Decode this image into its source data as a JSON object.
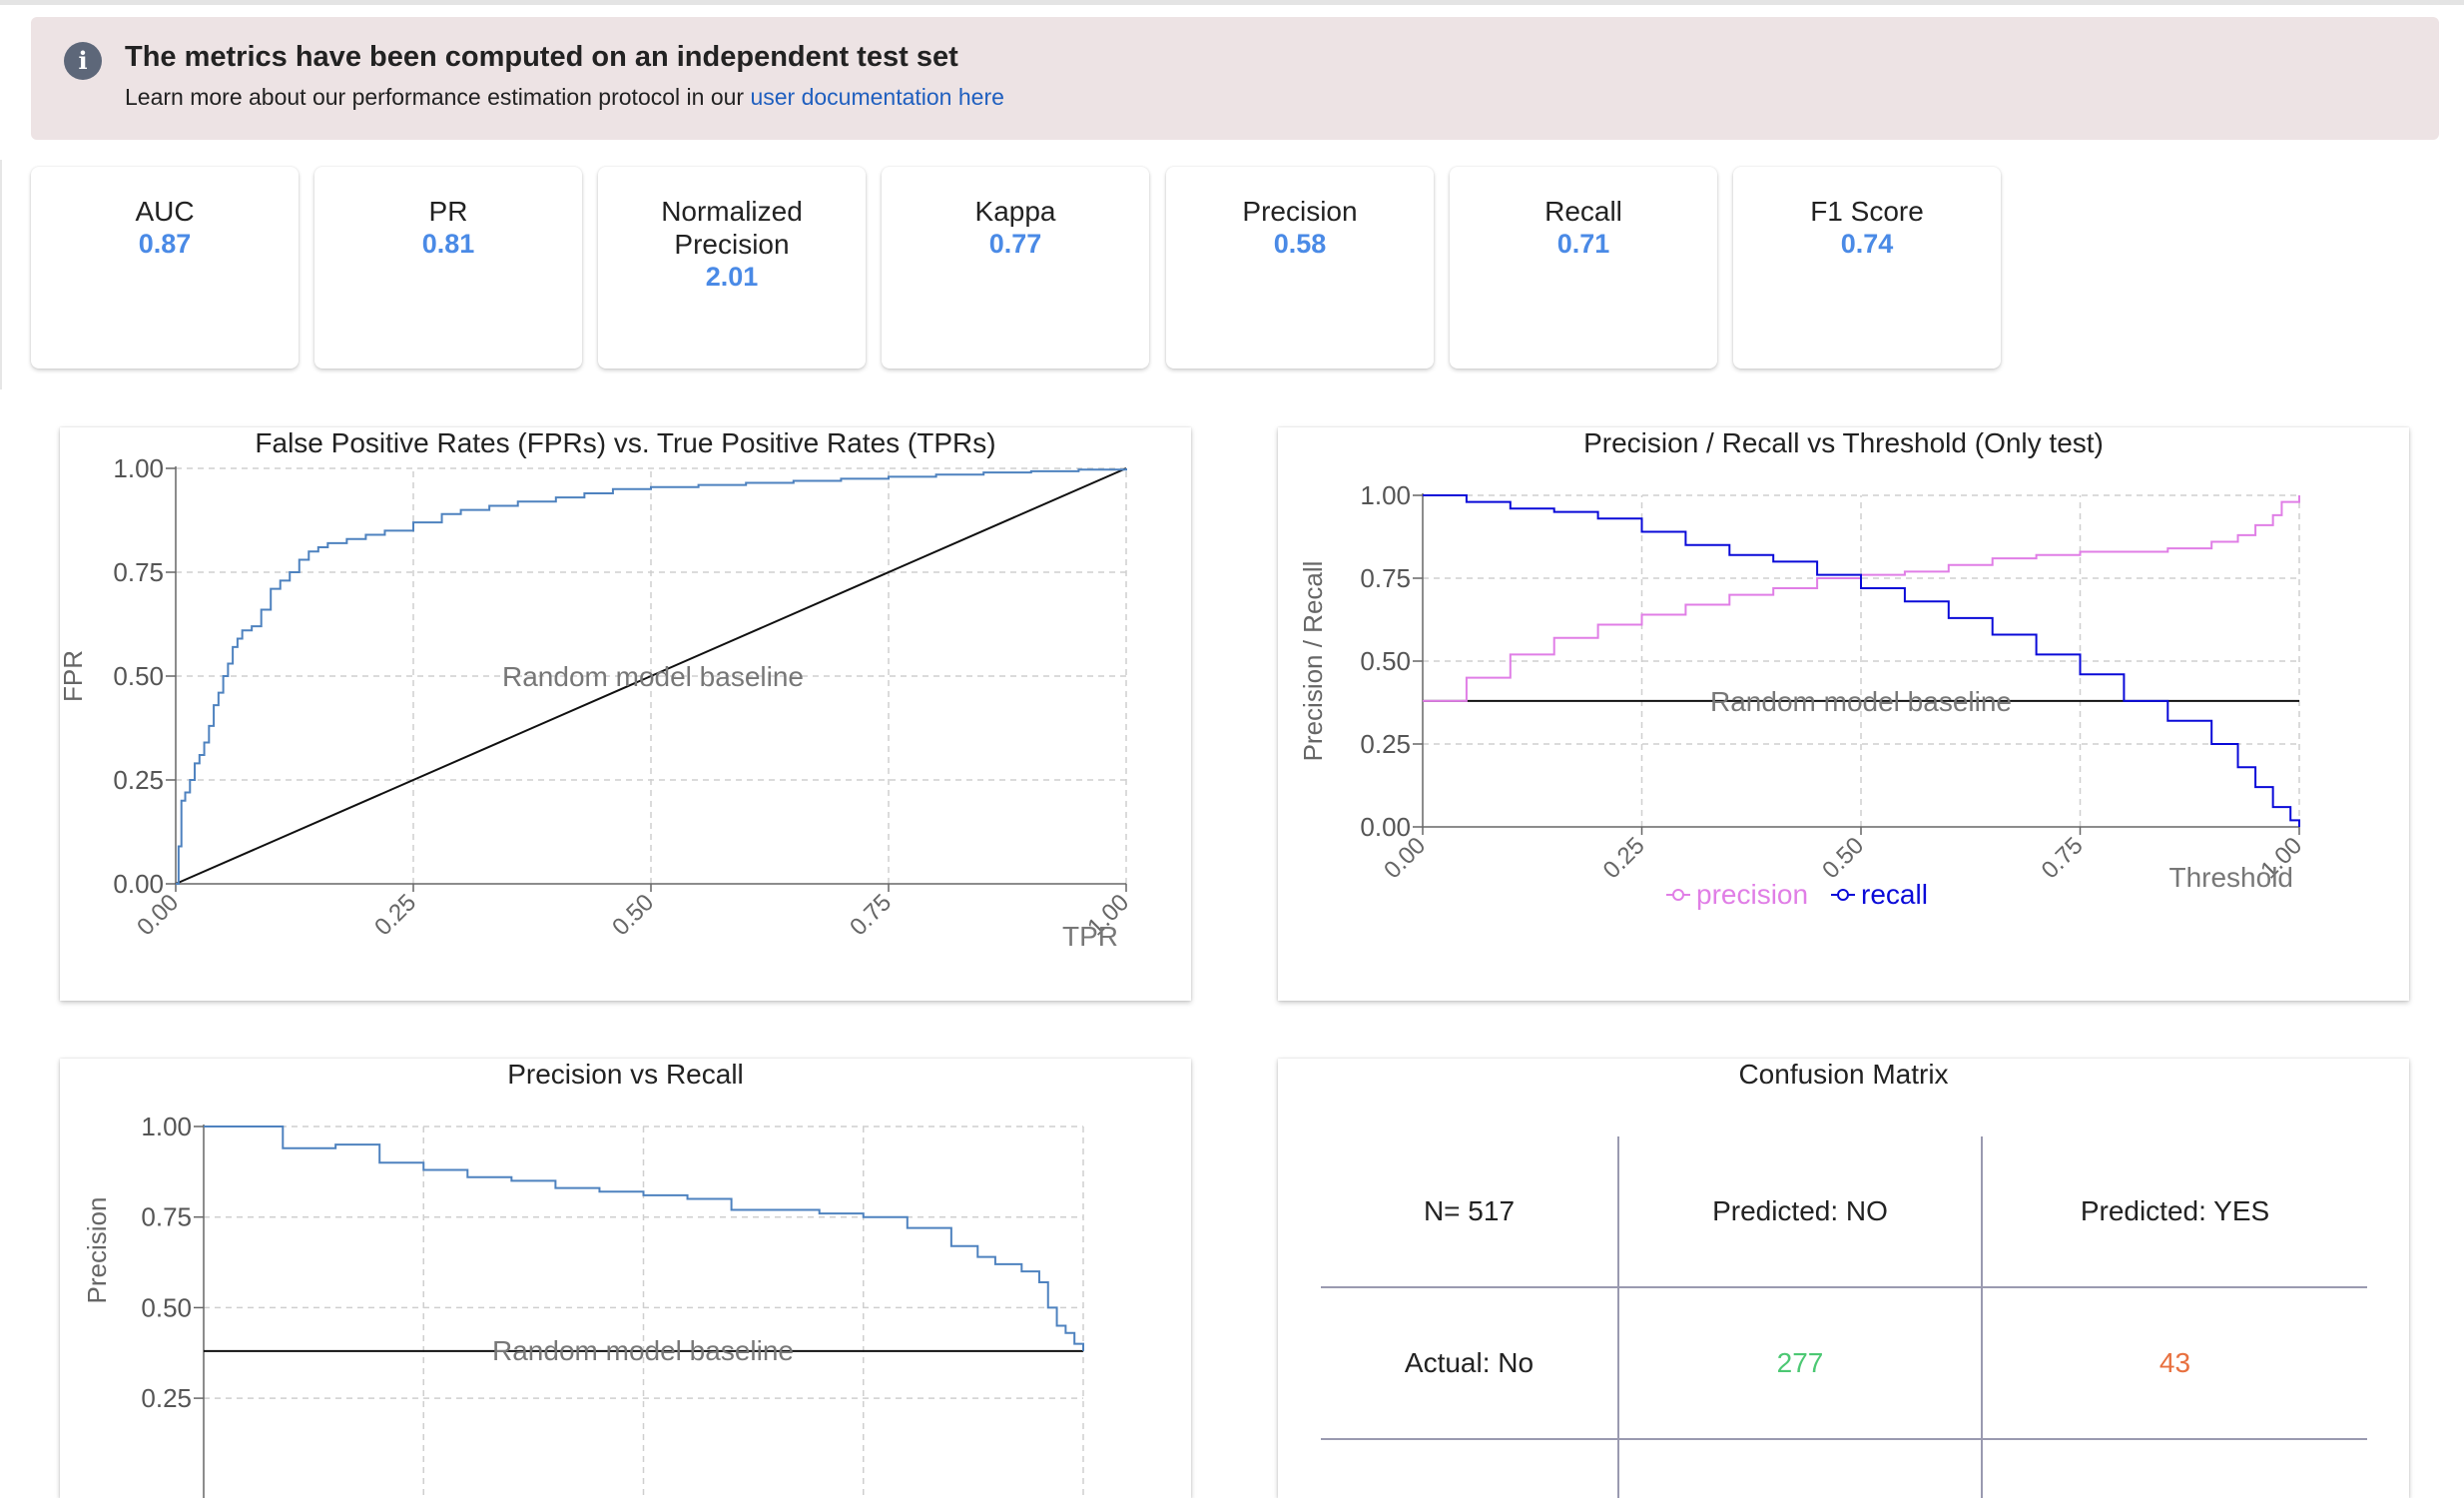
{
  "banner": {
    "title": "The metrics have been computed on an independent test set",
    "subtitle_prefix": "Learn more about our performance estimation protocol in our",
    "link_text": "user documentation here",
    "icon": "info-icon"
  },
  "metrics": [
    {
      "name": "AUC",
      "value": "0.87"
    },
    {
      "name": "PR",
      "value": "0.81"
    },
    {
      "name": "Normalized Precision",
      "value": "2.01"
    },
    {
      "name": "Kappa",
      "value": "0.77"
    },
    {
      "name": "Precision",
      "value": "0.58"
    },
    {
      "name": "Recall",
      "value": "0.71"
    },
    {
      "name": "F1 Score",
      "value": "0.74"
    }
  ],
  "colors": {
    "accent": "#4a8ae6",
    "banner_bg": "#ede3e4",
    "precision_series": "#e07ee6",
    "recall_series": "#0a0ad8",
    "roc_line": "#4e82bf",
    "cm_correct": "#4cc873",
    "cm_error": "#e8703f"
  },
  "chart_data": [
    {
      "type": "line",
      "title": "False Positive Rates (FPRs) vs. True Positive Rates (TPRs)",
      "xlabel": "TPR",
      "ylabel": "FPR",
      "xlim": [
        0,
        1
      ],
      "ylim": [
        0,
        1
      ],
      "x_ticks": [
        "0.00",
        "0.25",
        "0.50",
        "0.75",
        "1.00"
      ],
      "y_ticks": [
        "0.00",
        "0.25",
        "0.50",
        "0.75",
        "1.00"
      ],
      "grid": true,
      "annotation": "Random model baseline",
      "baseline": {
        "x": [
          0,
          1
        ],
        "y": [
          0,
          1
        ]
      },
      "series": [
        {
          "x": [
            0,
            0.003,
            0.006,
            0.01,
            0.015,
            0.02,
            0.025,
            0.03,
            0.035,
            0.04,
            0.045,
            0.05,
            0.055,
            0.06,
            0.065,
            0.07,
            0.08,
            0.09,
            0.1,
            0.11,
            0.12,
            0.13,
            0.14,
            0.15,
            0.16,
            0.18,
            0.2,
            0.22,
            0.25,
            0.28,
            0.3,
            0.33,
            0.36,
            0.4,
            0.43,
            0.46,
            0.5,
            0.55,
            0.6,
            0.65,
            0.7,
            0.75,
            0.8,
            0.85,
            0.9,
            0.95,
            1.0
          ],
          "y": [
            0,
            0.09,
            0.2,
            0.22,
            0.25,
            0.29,
            0.31,
            0.34,
            0.38,
            0.43,
            0.46,
            0.5,
            0.53,
            0.57,
            0.59,
            0.61,
            0.62,
            0.66,
            0.71,
            0.73,
            0.75,
            0.78,
            0.8,
            0.81,
            0.82,
            0.83,
            0.84,
            0.85,
            0.87,
            0.89,
            0.9,
            0.91,
            0.92,
            0.93,
            0.94,
            0.95,
            0.955,
            0.96,
            0.965,
            0.97,
            0.975,
            0.98,
            0.985,
            0.99,
            0.993,
            0.997,
            1.0
          ]
        }
      ]
    },
    {
      "type": "line",
      "title": "Precision / Recall vs Threshold (Only test)",
      "xlabel": "Threshold",
      "ylabel": "Precision / Recall",
      "xlim": [
        0,
        1
      ],
      "ylim": [
        0,
        1
      ],
      "x_ticks": [
        "0.00",
        "0.25",
        "0.50",
        "0.75",
        "1.00"
      ],
      "y_ticks": [
        "0.00",
        "0.25",
        "0.50",
        "0.75",
        "1.00"
      ],
      "grid": true,
      "legend": "bottom",
      "annotation": "Random model baseline",
      "baseline": {
        "y": 0.38
      },
      "series": [
        {
          "name": "precision",
          "x": [
            0,
            0.05,
            0.1,
            0.15,
            0.2,
            0.25,
            0.3,
            0.35,
            0.4,
            0.45,
            0.5,
            0.55,
            0.6,
            0.65,
            0.7,
            0.75,
            0.8,
            0.85,
            0.9,
            0.93,
            0.95,
            0.97,
            0.98,
            1.0
          ],
          "y": [
            0.38,
            0.45,
            0.52,
            0.57,
            0.61,
            0.64,
            0.67,
            0.7,
            0.72,
            0.75,
            0.76,
            0.77,
            0.79,
            0.81,
            0.82,
            0.83,
            0.83,
            0.84,
            0.86,
            0.88,
            0.91,
            0.94,
            0.98,
            1.0
          ]
        },
        {
          "name": "recall",
          "x": [
            0,
            0.05,
            0.1,
            0.15,
            0.2,
            0.25,
            0.3,
            0.35,
            0.4,
            0.45,
            0.5,
            0.55,
            0.6,
            0.65,
            0.7,
            0.75,
            0.8,
            0.85,
            0.9,
            0.93,
            0.95,
            0.97,
            0.99,
            1.0
          ],
          "y": [
            1.0,
            0.98,
            0.96,
            0.95,
            0.93,
            0.89,
            0.85,
            0.82,
            0.8,
            0.76,
            0.72,
            0.68,
            0.63,
            0.58,
            0.52,
            0.46,
            0.38,
            0.32,
            0.25,
            0.18,
            0.12,
            0.06,
            0.02,
            0.0
          ]
        }
      ]
    },
    {
      "type": "line",
      "title": "Precision vs Recall",
      "ylabel": "Precision",
      "xlim": [
        0,
        1
      ],
      "ylim": [
        0.25,
        1
      ],
      "y_ticks": [
        "0.25",
        "0.50",
        "0.75",
        "1.00"
      ],
      "grid": true,
      "annotation": "Random model baseline",
      "baseline": {
        "y": 0.38
      },
      "series": [
        {
          "x": [
            0,
            0.04,
            0.08,
            0.09,
            0.15,
            0.2,
            0.25,
            0.3,
            0.35,
            0.4,
            0.45,
            0.5,
            0.55,
            0.6,
            0.65,
            0.7,
            0.75,
            0.8,
            0.85,
            0.88,
            0.9,
            0.93,
            0.95,
            0.96,
            0.97,
            0.98,
            0.99,
            1.0
          ],
          "y": [
            1.0,
            1.0,
            1.0,
            0.94,
            0.95,
            0.9,
            0.88,
            0.86,
            0.85,
            0.83,
            0.82,
            0.81,
            0.8,
            0.77,
            0.77,
            0.76,
            0.75,
            0.72,
            0.67,
            0.64,
            0.62,
            0.6,
            0.57,
            0.5,
            0.45,
            0.43,
            0.4,
            0.38
          ]
        }
      ]
    },
    {
      "type": "table",
      "title": "Confusion Matrix",
      "header": [
        "N= 517",
        "Predicted: NO",
        "Predicted: YES"
      ],
      "rows": [
        {
          "label": "Actual: No",
          "values": [
            "277",
            "43"
          ]
        }
      ]
    }
  ]
}
